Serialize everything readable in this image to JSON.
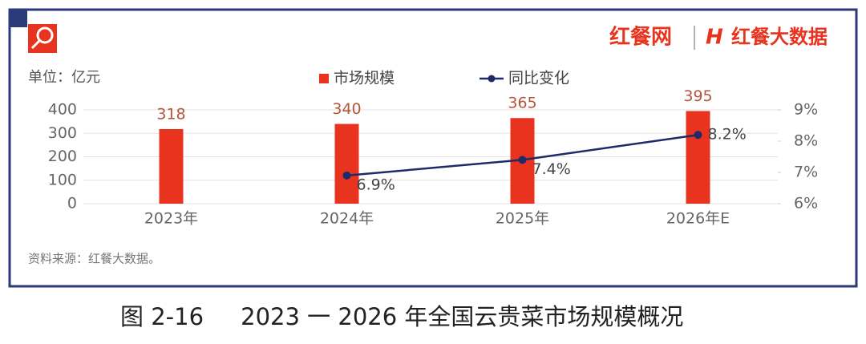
{
  "header": {
    "brand": "红餐网",
    "brand2": "红餐大数据"
  },
  "chart_data": {
    "type": "combo",
    "title": "图 2-16     2023 一 2026 年全国云贵菜市场规模概况",
    "y_label": "单位：亿元",
    "note": "资料来源：红餐大数据。",
    "categories": [
      "2023年",
      "2024年",
      "2025年",
      "2026年E"
    ],
    "series": [
      {
        "name": "市场规模",
        "type": "bar",
        "color": "#e8331f",
        "values": [
          318,
          340,
          365,
          395
        ]
      },
      {
        "name": "同比变化",
        "type": "line",
        "axis": "y2",
        "color": "#1f2a6b",
        "values": [
          null,
          6.9,
          7.4,
          8.2
        ],
        "value_labels": [
          null,
          "6.9%",
          "7.4%",
          "8.2%"
        ]
      }
    ],
    "ylim": [
      0,
      400
    ],
    "yticks": [
      0,
      100,
      200,
      300,
      400
    ],
    "y2lim": [
      6,
      9
    ],
    "y2ticks": [
      {
        "value": 6,
        "label": "6%"
      },
      {
        "value": 7,
        "label": "7%"
      },
      {
        "value": 8,
        "label": "8%"
      },
      {
        "value": 9,
        "label": "9%"
      }
    ],
    "grid": true
  }
}
